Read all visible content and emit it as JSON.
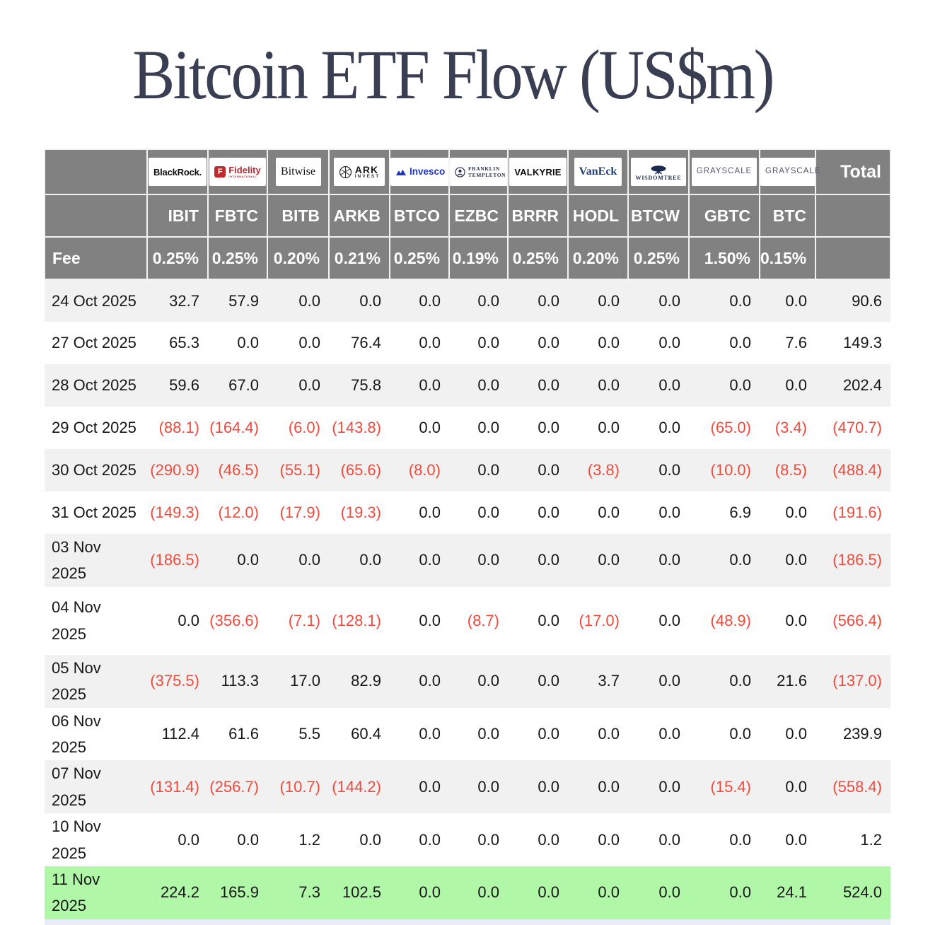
{
  "title": "Bitcoin ETF Flow (US$m)",
  "logos": {
    "blackrock": "BlackRock.",
    "fidelity_f": "F",
    "fidelity": "Fidelity",
    "fidelity_sub": "INTERNATIONAL",
    "bitwise": "Bitwise",
    "ark_main": "ARK",
    "ark_sub": "INVEST",
    "invesco": "Invesco",
    "franklin_1": "FRANKLIN",
    "franklin_2": "TEMPLETON",
    "valkyrie": "VALKYRIE",
    "vaneck": "VanEck",
    "wisdomtree": "WISDOMTREE",
    "grayscale_1": "GRAYSCALE",
    "grayscale_2": "GRAYSCALE"
  },
  "table": {
    "total_label": "Total",
    "fee_label": "Fee",
    "providers": [
      {
        "company": "BlackRock",
        "ticker": "IBIT",
        "fee": "0.25%"
      },
      {
        "company": "Fidelity",
        "ticker": "FBTC",
        "fee": "0.25%"
      },
      {
        "company": "Bitwise",
        "ticker": "BITB",
        "fee": "0.20%"
      },
      {
        "company": "ARK Invest",
        "ticker": "ARKB",
        "fee": "0.21%"
      },
      {
        "company": "Invesco",
        "ticker": "BTCO",
        "fee": "0.25%"
      },
      {
        "company": "Franklin Templeton",
        "ticker": "EZBC",
        "fee": "0.19%"
      },
      {
        "company": "Valkyrie",
        "ticker": "BRRR",
        "fee": "0.25%"
      },
      {
        "company": "VanEck",
        "ticker": "HODL",
        "fee": "0.20%"
      },
      {
        "company": "WisdomTree",
        "ticker": "BTCW",
        "fee": "0.25%"
      },
      {
        "company": "Grayscale",
        "ticker": "GBTC",
        "fee": "1.50%"
      },
      {
        "company": "Grayscale",
        "ticker": "BTC",
        "fee": "0.15%"
      }
    ],
    "rows": [
      {
        "date": "24 Oct 2025",
        "values": [
          "32.7",
          "57.9",
          "0.0",
          "0.0",
          "0.0",
          "0.0",
          "0.0",
          "0.0",
          "0.0",
          "0.0",
          "0.0"
        ],
        "total": "90.6",
        "highlight": false
      },
      {
        "date": "27 Oct 2025",
        "values": [
          "65.3",
          "0.0",
          "0.0",
          "76.4",
          "0.0",
          "0.0",
          "0.0",
          "0.0",
          "0.0",
          "0.0",
          "7.6"
        ],
        "total": "149.3",
        "highlight": false
      },
      {
        "date": "28 Oct 2025",
        "values": [
          "59.6",
          "67.0",
          "0.0",
          "75.8",
          "0.0",
          "0.0",
          "0.0",
          "0.0",
          "0.0",
          "0.0",
          "0.0"
        ],
        "total": "202.4",
        "highlight": false
      },
      {
        "date": "29 Oct 2025",
        "values": [
          "(88.1)",
          "(164.4)",
          "(6.0)",
          "(143.8)",
          "0.0",
          "0.0",
          "0.0",
          "0.0",
          "0.0",
          "(65.0)",
          "(3.4)"
        ],
        "total": "(470.7)",
        "highlight": false
      },
      {
        "date": "30 Oct 2025",
        "values": [
          "(290.9)",
          "(46.5)",
          "(55.1)",
          "(65.6)",
          "(8.0)",
          "0.0",
          "0.0",
          "(3.8)",
          "0.0",
          "(10.0)",
          "(8.5)"
        ],
        "total": "(488.4)",
        "highlight": false
      },
      {
        "date": "31 Oct 2025",
        "values": [
          "(149.3)",
          "(12.0)",
          "(17.9)",
          "(19.3)",
          "0.0",
          "0.0",
          "0.0",
          "0.0",
          "0.0",
          "6.9",
          "0.0"
        ],
        "total": "(191.6)",
        "highlight": false
      },
      {
        "date": "03 Nov 2025",
        "values": [
          "(186.5)",
          "0.0",
          "0.0",
          "0.0",
          "0.0",
          "0.0",
          "0.0",
          "0.0",
          "0.0",
          "0.0",
          "0.0"
        ],
        "total": "(186.5)",
        "highlight": false
      },
      {
        "date": "04 Nov\n2025",
        "values": [
          "0.0",
          "(356.6)",
          "(7.1)",
          "(128.1)",
          "0.0",
          "(8.7)",
          "0.0",
          "(17.0)",
          "0.0",
          "(48.9)",
          "0.0"
        ],
        "total": "(566.4)",
        "highlight": false
      },
      {
        "date": "05 Nov 2025",
        "values": [
          "(375.5)",
          "113.3",
          "17.0",
          "82.9",
          "0.0",
          "0.0",
          "0.0",
          "3.7",
          "0.0",
          "0.0",
          "21.6"
        ],
        "total": "(137.0)",
        "highlight": false
      },
      {
        "date": "06 Nov 2025",
        "values": [
          "112.4",
          "61.6",
          "5.5",
          "60.4",
          "0.0",
          "0.0",
          "0.0",
          "0.0",
          "0.0",
          "0.0",
          "0.0"
        ],
        "total": "239.9",
        "highlight": false
      },
      {
        "date": "07 Nov 2025",
        "values": [
          "(131.4)",
          "(256.7)",
          "(10.7)",
          "(144.2)",
          "0.0",
          "0.0",
          "0.0",
          "0.0",
          "0.0",
          "(15.4)",
          "0.0"
        ],
        "total": "(558.4)",
        "highlight": false
      },
      {
        "date": "10 Nov 2025",
        "values": [
          "0.0",
          "0.0",
          "1.2",
          "0.0",
          "0.0",
          "0.0",
          "0.0",
          "0.0",
          "0.0",
          "0.0",
          "0.0"
        ],
        "total": "1.2",
        "highlight": false
      },
      {
        "date": "11 Nov 2025",
        "values": [
          "224.2",
          "165.9",
          "7.3",
          "102.5",
          "0.0",
          "0.0",
          "0.0",
          "0.0",
          "0.0",
          "0.0",
          "24.1"
        ],
        "total": "524.0",
        "highlight": true
      }
    ]
  },
  "colors": {
    "header_bg": "#818181",
    "stripe_bg": "#f1f1f2",
    "highlight_bg": "#b1f7a8",
    "negative_text": "#f3493b",
    "partial_row_bg": "#e8ecf8",
    "title_text": "#3a3e52"
  }
}
